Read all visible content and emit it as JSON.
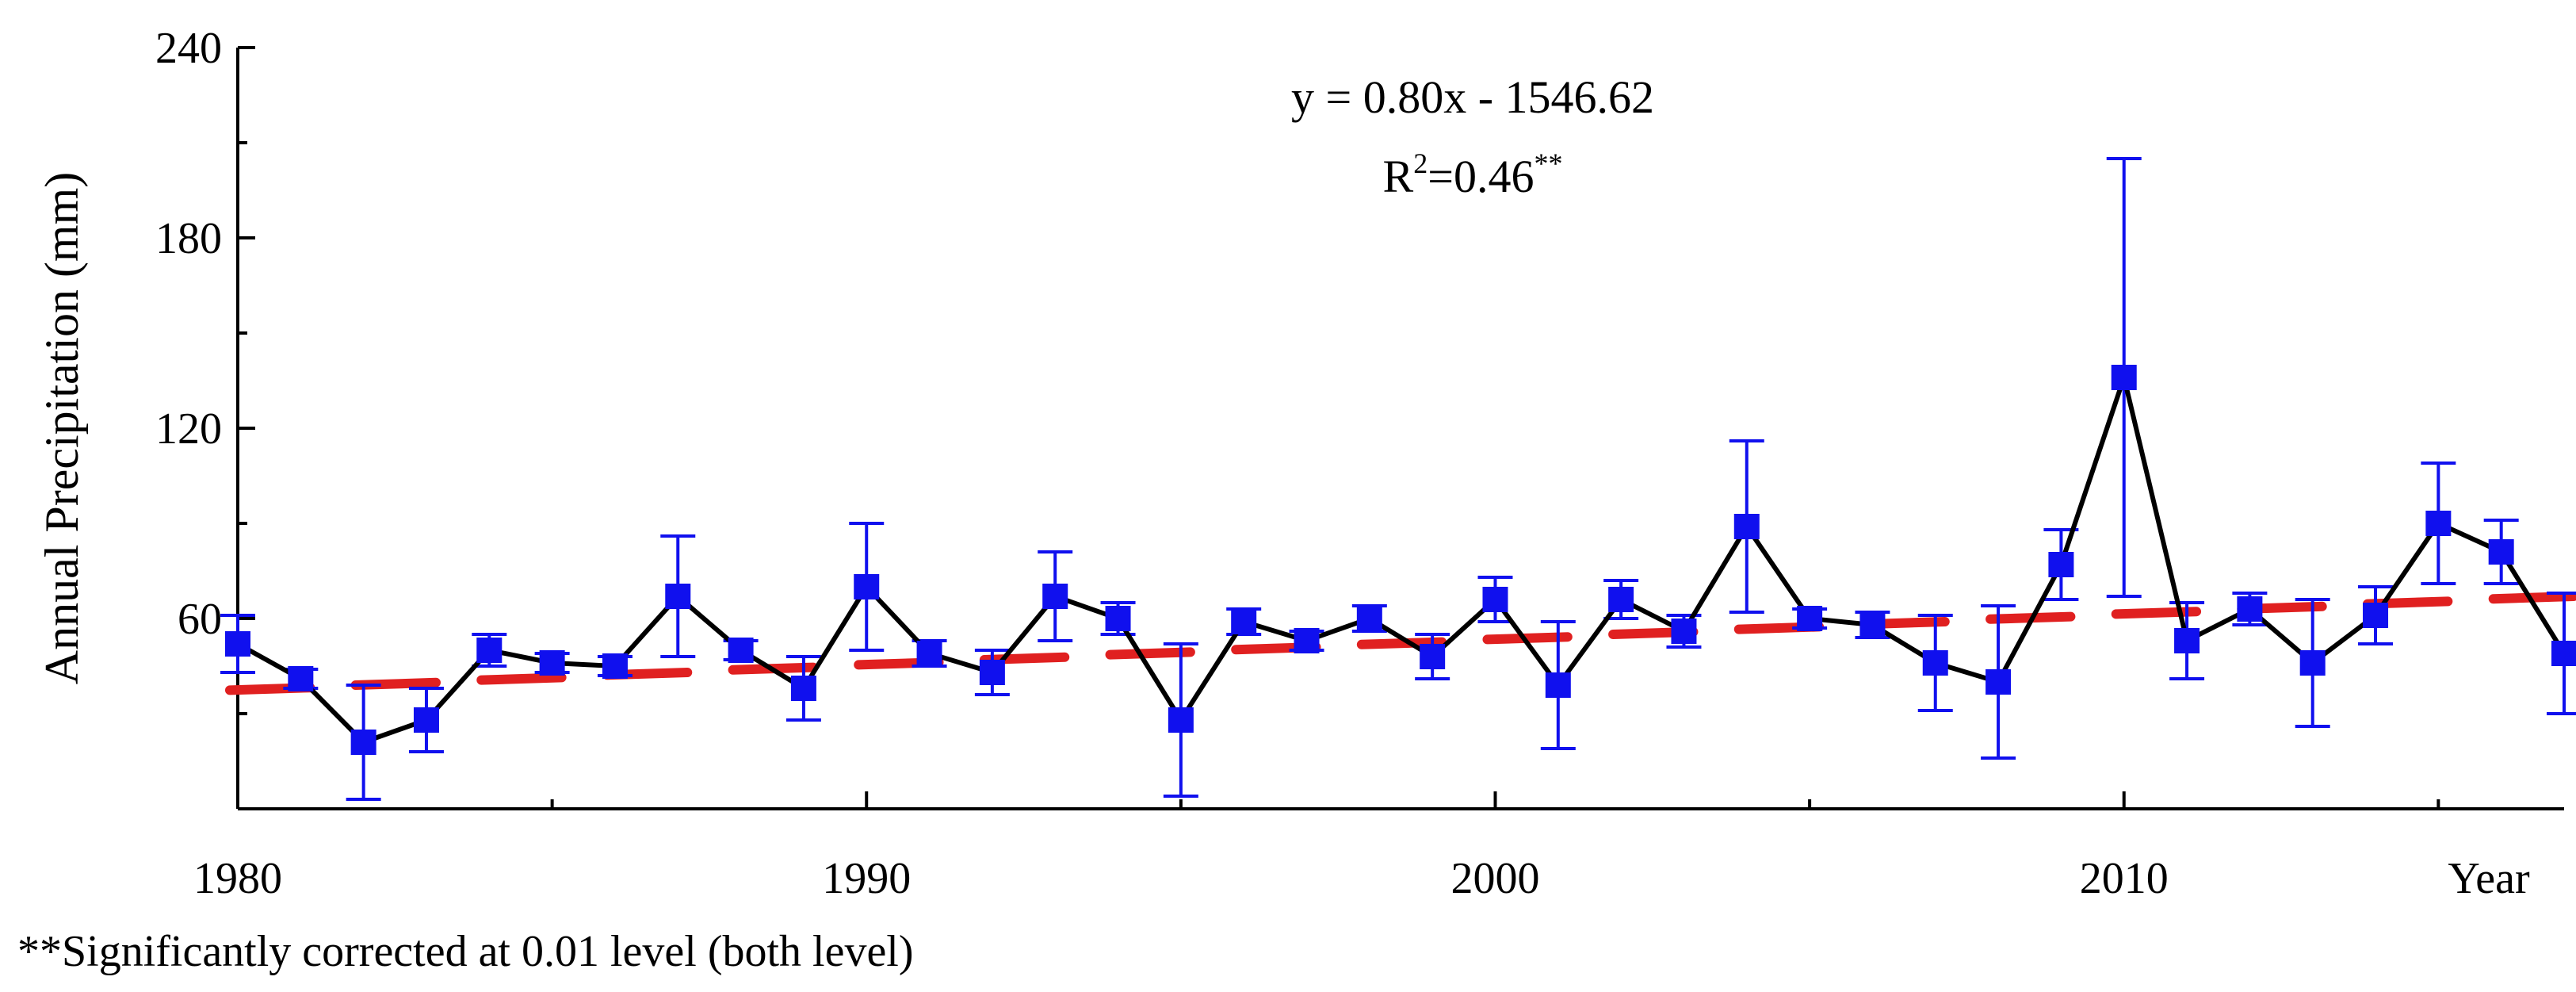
{
  "chart_data": {
    "type": "line",
    "title": "",
    "xlabel": "Year",
    "ylabel": "Annual Precipitation (mm)",
    "xlim": [
      1980,
      2017
    ],
    "ylim": [
      0,
      240
    ],
    "x_ticks": [
      1980,
      1990,
      2000,
      2010
    ],
    "y_ticks": [
      60,
      120,
      180,
      240
    ],
    "x": [
      1980,
      1981,
      1982,
      1983,
      1984,
      1985,
      1986,
      1987,
      1988,
      1989,
      1990,
      1991,
      1992,
      1993,
      1994,
      1995,
      1996,
      1997,
      1998,
      1999,
      2000,
      2001,
      2002,
      2003,
      2004,
      2005,
      2006,
      2007,
      2008,
      2009,
      2010,
      2011,
      2012,
      2013,
      2014,
      2015,
      2016,
      2017
    ],
    "series": [
      {
        "name": "Annual Precipitation",
        "color": "#000000",
        "marker_color": "#1010ee",
        "values": [
          52,
          41,
          21,
          28,
          50,
          46,
          45,
          67,
          50,
          38,
          70,
          49,
          43,
          67,
          60,
          28,
          59,
          53,
          60,
          48,
          66,
          39,
          66,
          56,
          89,
          60,
          58,
          46,
          40,
          77,
          136,
          53,
          63,
          46,
          61,
          90,
          81,
          49
        ],
        "error": [
          9,
          3,
          18,
          10,
          5,
          3,
          3,
          19,
          3,
          10,
          20,
          4,
          7,
          14,
          5,
          24,
          4,
          3,
          4,
          7,
          7,
          20,
          6,
          5,
          27,
          3,
          4,
          15,
          24,
          11,
          69,
          12,
          5,
          20,
          9,
          19,
          10,
          19
        ]
      },
      {
        "name": "Linear fit",
        "color": "#e02020",
        "style": "dashed",
        "slope": 0.8,
        "intercept": -1546.62,
        "values": [
          37.4,
          38.2,
          39.0,
          39.8,
          40.6,
          41.4,
          42.2,
          43.0,
          43.8,
          44.6,
          45.4,
          46.2,
          47.0,
          47.8,
          48.6,
          49.4,
          50.2,
          51.0,
          51.8,
          52.6,
          53.4,
          54.2,
          55.0,
          55.8,
          56.6,
          57.4,
          58.2,
          59.0,
          59.8,
          60.6,
          61.4,
          62.2,
          63.0,
          63.8,
          64.6,
          65.4,
          66.2,
          67.0
        ]
      }
    ],
    "annotations": {
      "equation": "y = 0.80x - 1546.62",
      "r2_prefix": "R",
      "r2_exp": "2",
      "r2_value": "=0.46",
      "r2_sig": "**"
    },
    "footnote": "**Significantly corrected at 0.01 level (both level)"
  }
}
